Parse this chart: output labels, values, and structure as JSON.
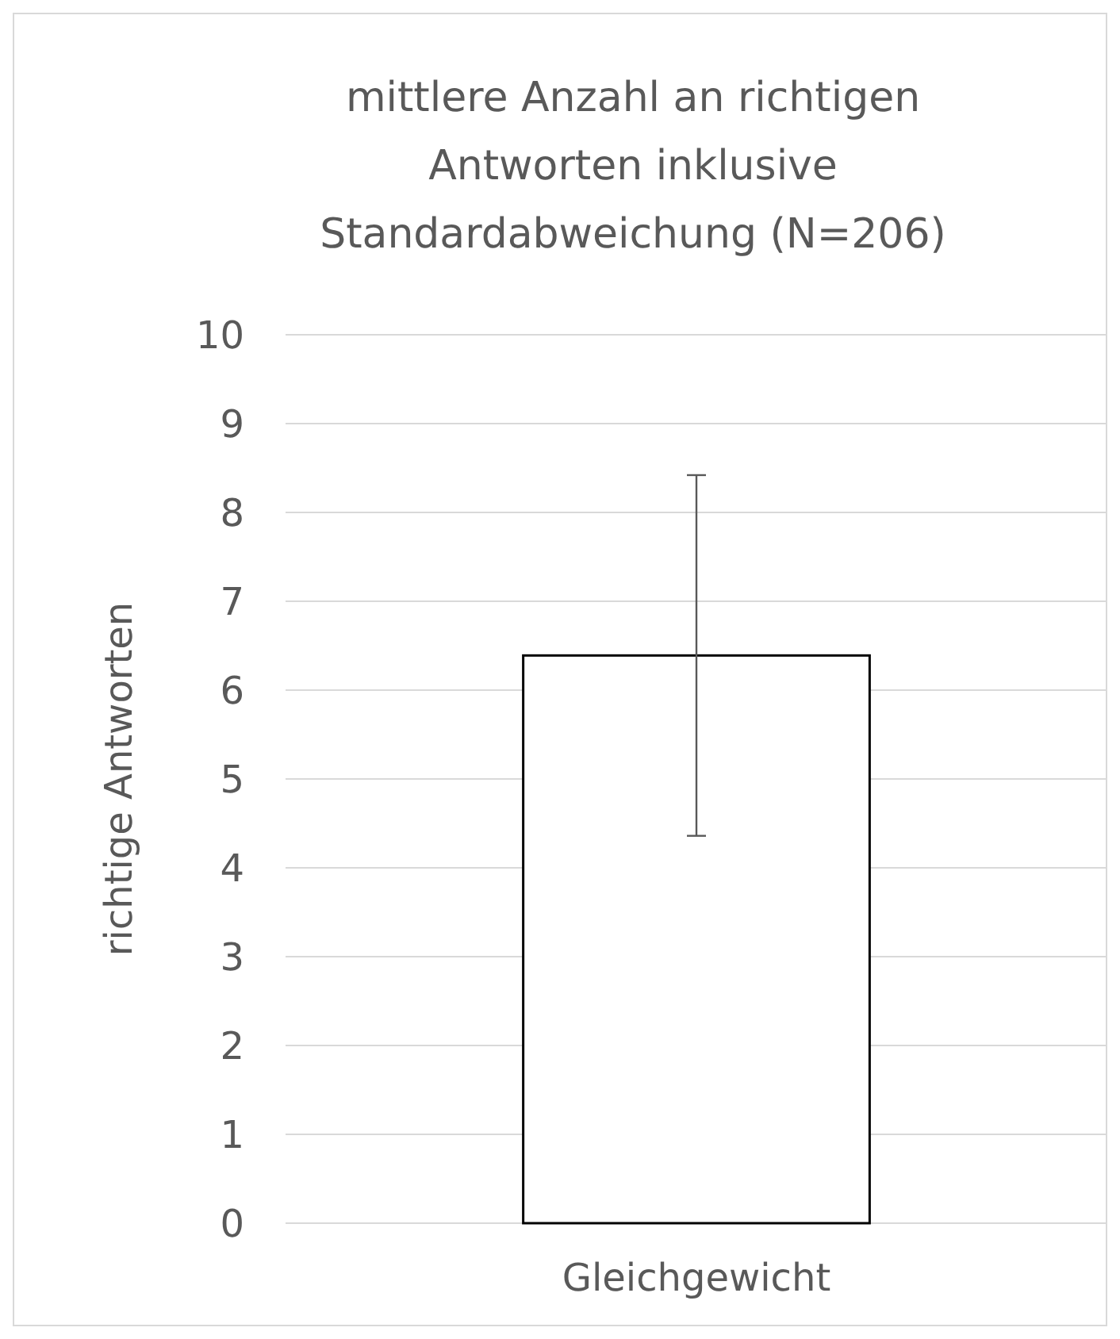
{
  "chart_data": {
    "type": "bar",
    "title": "mittlere Anzahl an richtigen Antworten inklusive Standardabweichung (N=206)",
    "ylabel": "richtige Antworten",
    "categories": [
      "Gleichgewicht"
    ],
    "values": [
      6.39
    ],
    "errors": [
      2.03
    ],
    "color": "#ffffff",
    "ylim": [
      0,
      10
    ],
    "yticks": [
      0,
      1,
      2,
      3,
      4,
      5,
      6,
      7,
      8,
      9,
      10
    ],
    "grid": "y"
  }
}
